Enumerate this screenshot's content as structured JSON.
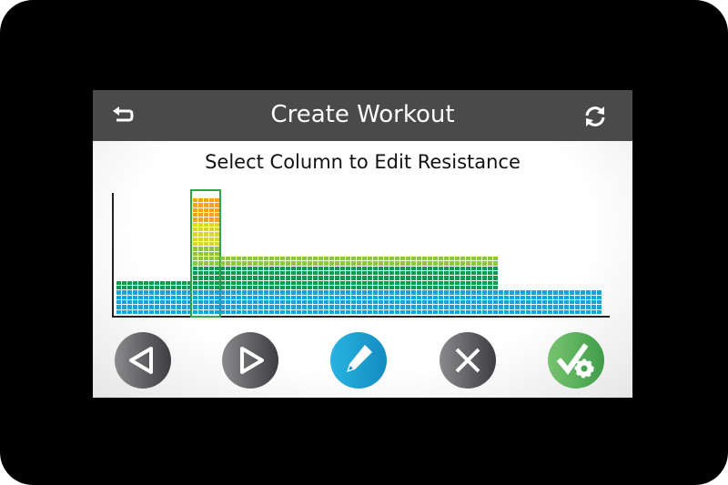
{
  "header": {
    "title": "Create Workout",
    "back_icon": "back-arrow-icon",
    "refresh_icon": "refresh-icon"
  },
  "subtitle": "Select Column to Edit Resistance",
  "colors": {
    "header": "#4a4a4a",
    "selection": "#2aa84a",
    "blue": "#1aa3d4",
    "dark_green": "#129a50",
    "light_green": "#8dc63f",
    "yellow": "#dcd52a",
    "orange": "#f5a31a"
  },
  "chart_data": {
    "type": "bar",
    "segments": [
      {
        "columns": 14,
        "level": 7,
        "selected": false
      },
      {
        "columns": 5,
        "level": 24,
        "selected": true
      },
      {
        "columns": 51,
        "level": 12,
        "selected": false
      },
      {
        "columns": 19,
        "level": 5,
        "selected": false
      }
    ],
    "color_bands": [
      {
        "up_to_level": 5,
        "color": "#1aa3d4"
      },
      {
        "up_to_level": 10,
        "color": "#129a50"
      },
      {
        "up_to_level": 14,
        "color": "#8dc63f"
      },
      {
        "up_to_level": 19,
        "color": "#dcd52a"
      },
      {
        "up_to_level": 24,
        "color": "#f5a31a"
      }
    ]
  },
  "buttons": [
    {
      "name": "previous-button",
      "icon": "triangle-left-icon"
    },
    {
      "name": "next-button",
      "icon": "triangle-right-icon"
    },
    {
      "name": "edit-button",
      "icon": "pencil-icon"
    },
    {
      "name": "cancel-button",
      "icon": "close-icon"
    },
    {
      "name": "save-button",
      "icon": "check-gear-icon"
    }
  ]
}
